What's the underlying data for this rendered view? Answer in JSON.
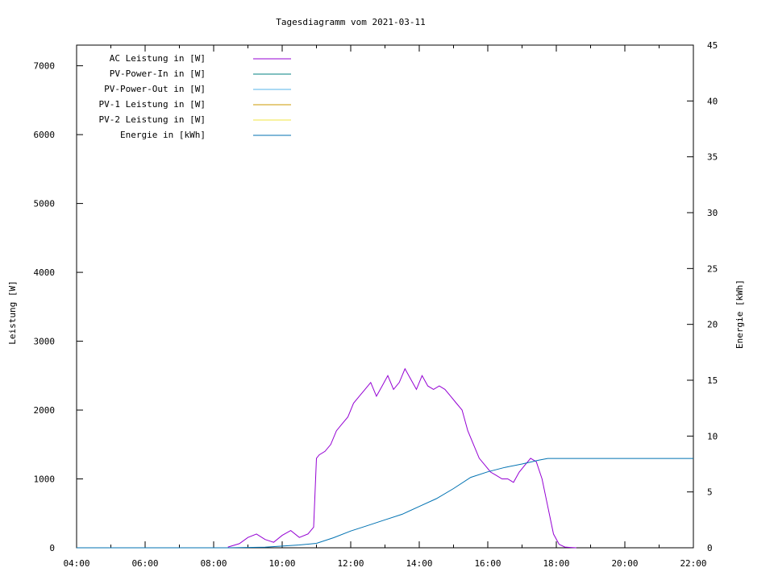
{
  "chart_data": {
    "type": "line",
    "title": "Tagesdiagramm vom 2021-03-11",
    "ylabel": "Leistung [W]",
    "y2label": "Energie [kWh]",
    "xlim": [
      "04:00",
      "22:00"
    ],
    "ylim": [
      0,
      7300
    ],
    "y2lim": [
      0,
      45
    ],
    "x_ticks": [
      "04:00",
      "06:00",
      "08:00",
      "10:00",
      "12:00",
      "14:00",
      "16:00",
      "18:00",
      "20:00",
      "22:00"
    ],
    "y_ticks": [
      0,
      1000,
      2000,
      3000,
      4000,
      5000,
      6000,
      7000
    ],
    "y2_ticks": [
      0,
      5,
      10,
      15,
      20,
      25,
      30,
      35,
      40,
      45
    ],
    "legend_position": "top-left",
    "series": [
      {
        "name": "AC Leistung in [W]",
        "color": "#9400d3",
        "axis": "left",
        "x": [
          "08:25",
          "08:45",
          "09:00",
          "09:15",
          "09:30",
          "09:45",
          "10:00",
          "10:15",
          "10:30",
          "10:45",
          "10:55",
          "11:00",
          "11:05",
          "11:15",
          "11:25",
          "11:35",
          "11:45",
          "11:55",
          "12:05",
          "12:15",
          "12:25",
          "12:35",
          "12:45",
          "12:55",
          "13:05",
          "13:15",
          "13:25",
          "13:35",
          "13:45",
          "13:55",
          "14:05",
          "14:15",
          "14:25",
          "14:35",
          "14:45",
          "14:55",
          "15:05",
          "15:15",
          "15:25",
          "15:35",
          "15:45",
          "15:55",
          "16:05",
          "16:15",
          "16:25",
          "16:35",
          "16:45",
          "16:55",
          "17:05",
          "17:15",
          "17:25",
          "17:35",
          "17:45",
          "17:55",
          "18:05",
          "18:15",
          "18:25",
          "18:35"
        ],
        "y": [
          10,
          60,
          150,
          200,
          120,
          80,
          180,
          250,
          150,
          200,
          300,
          1300,
          1350,
          1400,
          1500,
          1700,
          1800,
          1900,
          2100,
          2200,
          2300,
          2400,
          2200,
          2350,
          2500,
          2300,
          2400,
          2600,
          2450,
          2300,
          2500,
          2350,
          2300,
          2350,
          2300,
          2200,
          2100,
          2000,
          1700,
          1500,
          1300,
          1200,
          1100,
          1050,
          1000,
          1000,
          950,
          1100,
          1200,
          1300,
          1250,
          1000,
          600,
          200,
          50,
          10,
          5,
          0
        ]
      },
      {
        "name": "PV-Power-In in [W]",
        "color": "#008080",
        "axis": "left",
        "x": [],
        "y": []
      },
      {
        "name": "PV-Power-Out in [W]",
        "color": "#56b4e9",
        "axis": "left",
        "x": [],
        "y": []
      },
      {
        "name": "PV-1 Leistung in [W]",
        "color": "#cc9900",
        "axis": "left",
        "x": [],
        "y": []
      },
      {
        "name": "PV-2 Leistung in [W]",
        "color": "#f0e442",
        "axis": "left",
        "x": [],
        "y": []
      },
      {
        "name": "Energie in [kWh]",
        "color": "#0072b2",
        "axis": "right",
        "x": [
          "04:00",
          "08:25",
          "09:30",
          "10:00",
          "10:30",
          "11:00",
          "11:30",
          "12:00",
          "12:30",
          "13:00",
          "13:30",
          "14:00",
          "14:30",
          "15:00",
          "15:30",
          "16:00",
          "16:30",
          "17:00",
          "17:30",
          "17:45",
          "18:00",
          "19:00",
          "20:00",
          "21:00",
          "22:00"
        ],
        "y": [
          0,
          0,
          0.05,
          0.15,
          0.25,
          0.4,
          0.9,
          1.5,
          2.0,
          2.5,
          3.0,
          3.7,
          4.4,
          5.3,
          6.3,
          6.8,
          7.2,
          7.5,
          7.85,
          8.0,
          8.0,
          8.0,
          8.0,
          8.0,
          8.0
        ]
      }
    ]
  }
}
